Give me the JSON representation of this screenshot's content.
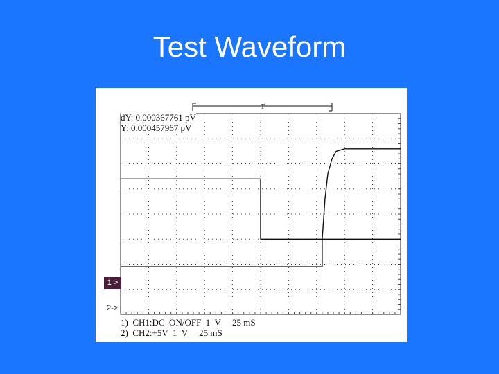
{
  "slide": {
    "title": "Test Waveform"
  },
  "scope": {
    "readout_dy": "dY: 0.000367761 pV",
    "readout_y": "Y: 0.000457967 pV",
    "ch1_marker": "1 >",
    "ch2_marker": "2->",
    "footer_ch1": "1)  CH1:DC  ON/OFF  1  V     25 mS",
    "footer_ch2": "2)  CH2:+5V  1  V     25 mS",
    "cursor_label": "T"
  },
  "chart_data": {
    "type": "line",
    "title": "",
    "xlabel": "",
    "ylabel": "",
    "grid": true,
    "x_divisions": 10,
    "y_divisions": 8,
    "series": [
      {
        "x": [
          0,
          5.0,
          5.0,
          10
        ],
        "y": [
          5.4,
          5.4,
          3.0,
          3.0
        ]
      },
      {
        "x": [
          0,
          7.2,
          7.2,
          7.3,
          7.4,
          7.55,
          7.7,
          8.0,
          10
        ],
        "y": [
          1.9,
          1.9,
          3.0,
          4.6,
          5.6,
          6.2,
          6.5,
          6.6,
          6.6
        ]
      }
    ]
  }
}
